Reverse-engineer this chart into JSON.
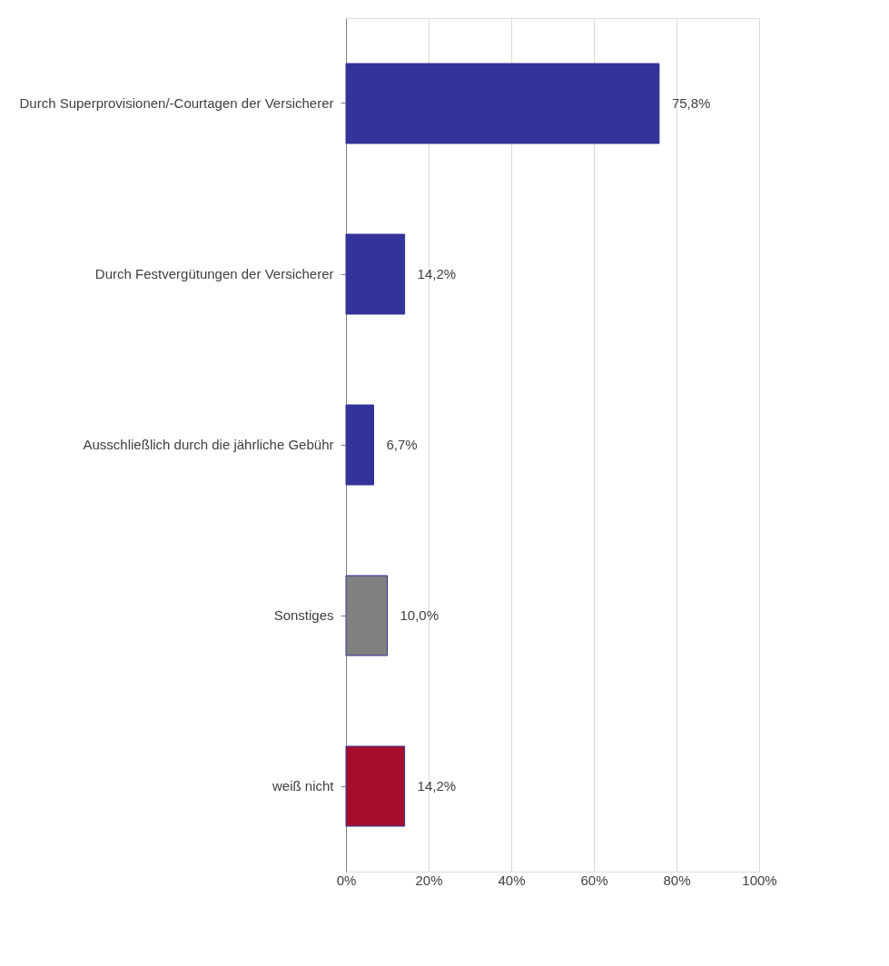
{
  "chart_data": {
    "type": "bar",
    "orientation": "horizontal",
    "categories": [
      "Durch Superprovisionen/-Courtagen der Versicherer",
      "Durch Festvergütungen der Versicherer",
      "Ausschließlich durch die jährliche Gebühr",
      "Sonstiges",
      "weiß nicht"
    ],
    "values": [
      75.8,
      14.2,
      6.7,
      10.0,
      14.2
    ],
    "colors": [
      "#333399",
      "#333399",
      "#333399",
      "#808080",
      "#a50f2d"
    ],
    "value_labels": [
      "75,8%",
      "14,2%",
      "6,7%",
      "10,0%",
      "14,2%"
    ],
    "xlim": [
      0,
      100
    ],
    "xticks": [
      {
        "value": 0,
        "label": "0%"
      },
      {
        "value": 20,
        "label": "20%"
      },
      {
        "value": 40,
        "label": "40%"
      },
      {
        "value": 60,
        "label": "60%"
      },
      {
        "value": 80,
        "label": "80%"
      },
      {
        "value": 100,
        "label": "100%"
      }
    ],
    "grid": "x"
  }
}
